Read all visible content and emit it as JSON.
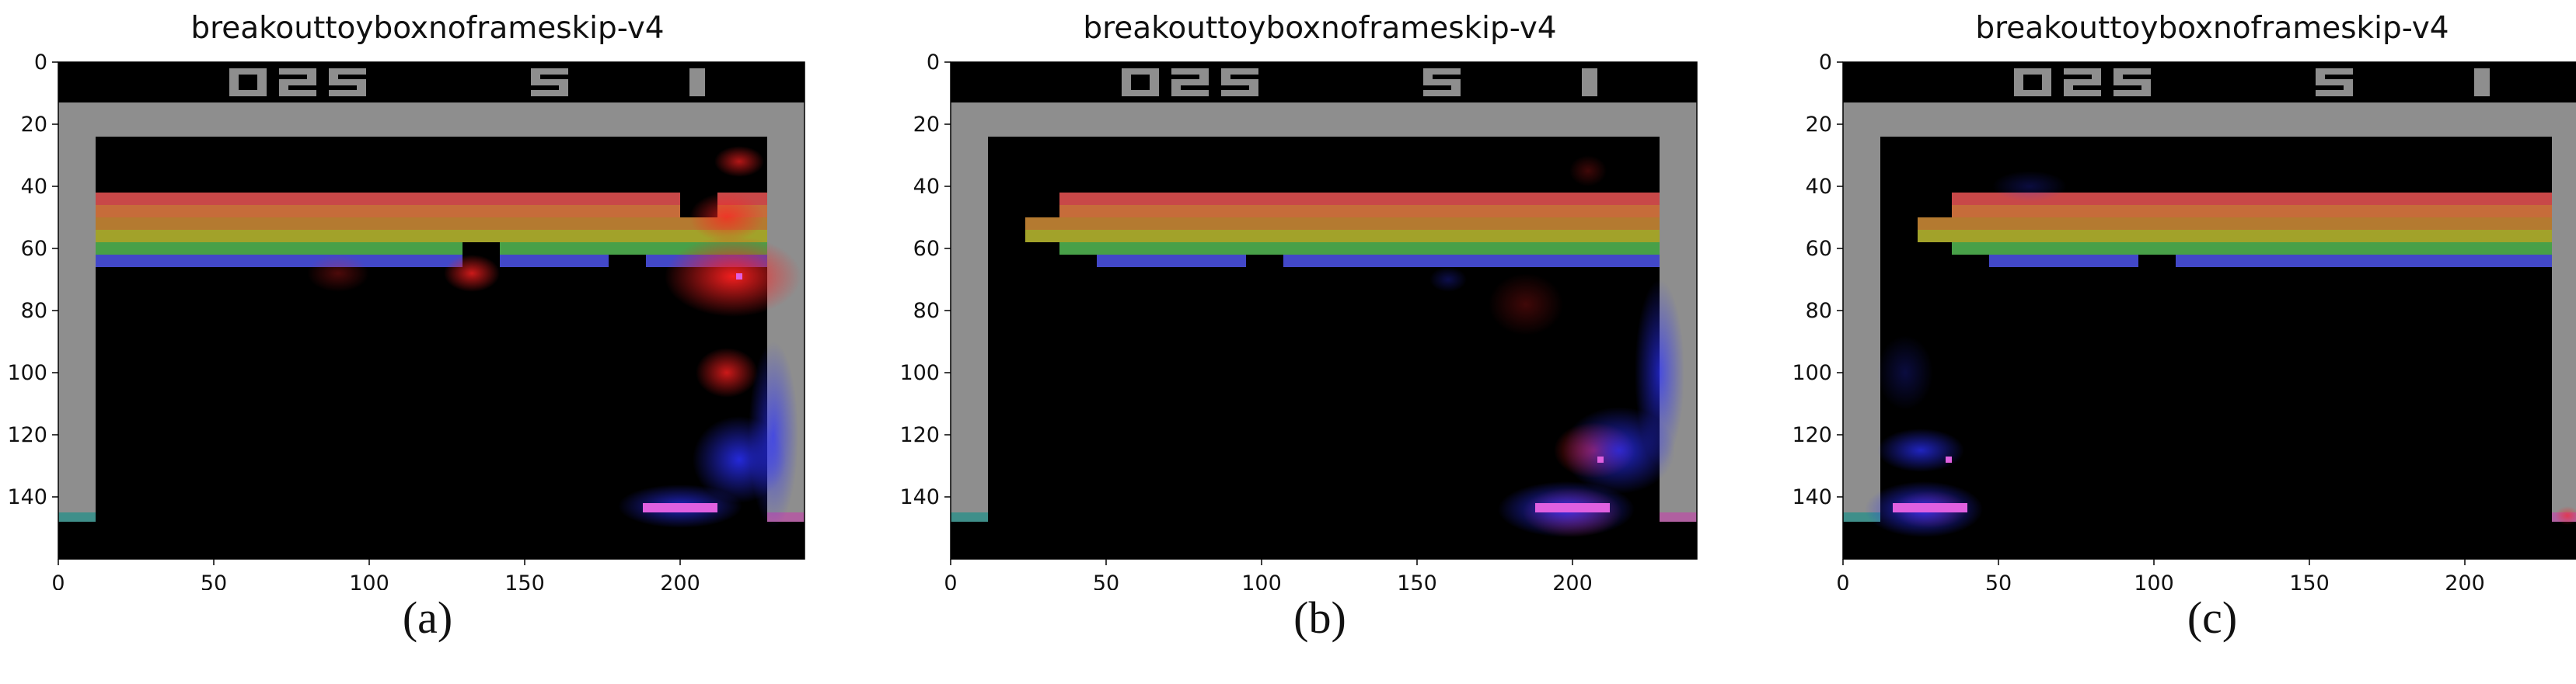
{
  "figure": {
    "panels": [
      {
        "id": "a",
        "title": "breakouttoyboxnoframeskip-v4",
        "caption": "(a)",
        "score": "025",
        "lives": "5",
        "player": "1",
        "missing_bricks_top_rows": [
          [
            200,
            212
          ]
        ],
        "bricks_gap_row5": [
          [
            130,
            142
          ]
        ],
        "bricks_gap_row6": [
          [
            130,
            142
          ],
          [
            177,
            189
          ]
        ],
        "red_saliency": [
          {
            "x": 217,
            "y": 69,
            "rx": 22,
            "ry": 13,
            "opacity": 0.95
          },
          {
            "x": 133,
            "y": 68,
            "rx": 9,
            "ry": 6,
            "opacity": 0.8
          },
          {
            "x": 215,
            "y": 100,
            "rx": 10,
            "ry": 8,
            "opacity": 0.8
          },
          {
            "x": 219,
            "y": 32,
            "rx": 8,
            "ry": 5,
            "opacity": 0.7
          },
          {
            "x": 90,
            "y": 68,
            "rx": 10,
            "ry": 6,
            "opacity": 0.3
          },
          {
            "x": 215,
            "y": 50,
            "rx": 12,
            "ry": 8,
            "opacity": 0.7
          }
        ],
        "blue_saliency": [
          {
            "x": 219,
            "y": 128,
            "rx": 15,
            "ry": 14,
            "opacity": 0.85
          },
          {
            "x": 200,
            "y": 143,
            "rx": 20,
            "ry": 7,
            "opacity": 0.75
          },
          {
            "x": 230,
            "y": 120,
            "rx": 8,
            "ry": 30,
            "opacity": 0.7
          }
        ],
        "paddle_x": [
          188,
          212
        ],
        "ball": [
          219,
          69
        ]
      },
      {
        "id": "b",
        "title": "breakouttoyboxnoframeskip-v4",
        "caption": "(b)",
        "score": "025",
        "lives": "5",
        "player": "1",
        "missing_bricks_top_rows": [
          [
            12,
            24
          ],
          [
            24,
            35
          ]
        ],
        "bricks_gap_row5": [
          [
            12,
            35
          ]
        ],
        "bricks_gap_row6": [
          [
            12,
            47
          ],
          [
            95,
            107
          ]
        ],
        "red_saliency": [
          {
            "x": 207,
            "y": 125,
            "rx": 13,
            "ry": 9,
            "opacity": 0.75
          },
          {
            "x": 200,
            "y": 145,
            "rx": 16,
            "ry": 8,
            "opacity": 0.6
          },
          {
            "x": 205,
            "y": 35,
            "rx": 6,
            "ry": 5,
            "opacity": 0.25
          },
          {
            "x": 185,
            "y": 78,
            "rx": 12,
            "ry": 10,
            "opacity": 0.25
          }
        ],
        "blue_saliency": [
          {
            "x": 198,
            "y": 144,
            "rx": 22,
            "ry": 9,
            "opacity": 0.9
          },
          {
            "x": 215,
            "y": 125,
            "rx": 18,
            "ry": 14,
            "opacity": 0.8
          },
          {
            "x": 228,
            "y": 100,
            "rx": 8,
            "ry": 30,
            "opacity": 0.7
          },
          {
            "x": 160,
            "y": 70,
            "rx": 6,
            "ry": 4,
            "opacity": 0.3
          }
        ],
        "paddle_x": [
          188,
          212
        ],
        "ball": [
          209,
          128
        ]
      },
      {
        "id": "c",
        "title": "breakouttoyboxnoframeskip-v4",
        "caption": "(c)",
        "score": "025",
        "lives": "5",
        "player": "1",
        "missing_bricks_top_rows": [
          [
            12,
            24
          ],
          [
            24,
            35
          ]
        ],
        "bricks_gap_row5": [
          [
            12,
            35
          ]
        ],
        "bricks_gap_row6": [
          [
            12,
            47
          ],
          [
            95,
            107
          ]
        ],
        "red_saliency": [
          {
            "x": 28,
            "y": 144,
            "rx": 12,
            "ry": 6,
            "opacity": 0.45
          },
          {
            "x": 233,
            "y": 146,
            "rx": 4,
            "ry": 3,
            "opacity": 0.6
          }
        ],
        "blue_saliency": [
          {
            "x": 26,
            "y": 144,
            "rx": 19,
            "ry": 9,
            "opacity": 0.9
          },
          {
            "x": 25,
            "y": 125,
            "rx": 14,
            "ry": 7,
            "opacity": 0.75
          },
          {
            "x": 20,
            "y": 100,
            "rx": 9,
            "ry": 12,
            "opacity": 0.25
          },
          {
            "x": 60,
            "y": 40,
            "rx": 12,
            "ry": 5,
            "opacity": 0.25
          }
        ],
        "paddle_x": [
          16,
          40
        ],
        "ball": [
          34,
          128
        ]
      }
    ],
    "x_ticks": [
      "0",
      "50",
      "100",
      "150",
      "200"
    ],
    "y_ticks": [
      "0",
      "20",
      "40",
      "60",
      "80",
      "100",
      "120",
      "140"
    ],
    "colors": {
      "background": "#000000",
      "wall": "#8e8e8e",
      "rows": [
        "#c84848",
        "#c66c3a",
        "#b47a30",
        "#a2a22a",
        "#48a048",
        "#4248c8"
      ],
      "paddle": "#c84848",
      "ball_saliency_red": "#ff2020",
      "ball_saliency_blue": "#2a30ff"
    }
  }
}
